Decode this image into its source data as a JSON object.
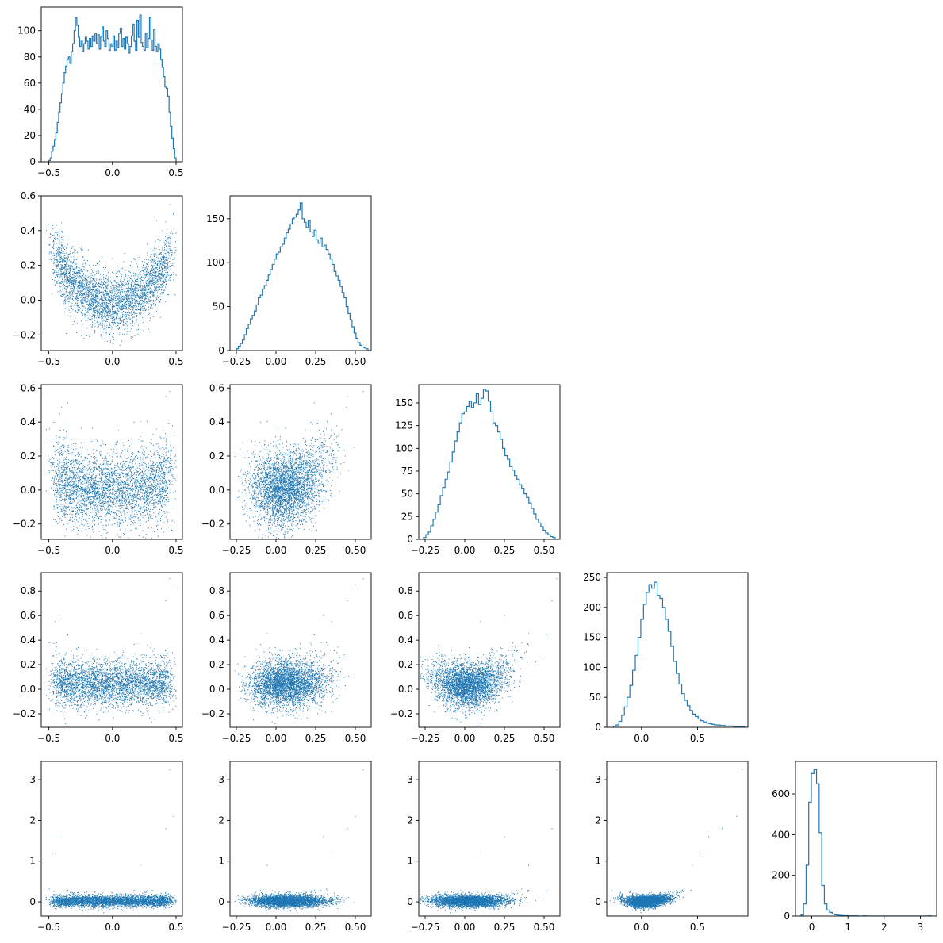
{
  "chart_data": {
    "type": "corner",
    "series_color": "#1f77b4",
    "dims": [
      {
        "index": 0,
        "range": [
          -0.56,
          0.55
        ],
        "xticks": [
          -0.5,
          0.0,
          0.5
        ],
        "xtick_labels": [
          "−0.5",
          "0.0",
          "0.5"
        ],
        "yticks_as_row": [
          -0.2,
          0.0,
          0.2,
          0.4,
          0.6
        ],
        "ytick_labels_as_row": [
          "−0.2",
          "0.0",
          "0.2",
          "0.4",
          "0.6"
        ],
        "hist": {
          "ylim": [
            0,
            118
          ],
          "yticks": [
            0,
            20,
            40,
            60,
            80,
            100
          ],
          "ytick_labels": [
            "0",
            "20",
            "40",
            "60",
            "80",
            "100"
          ],
          "bin_edges": [
            -0.5,
            0.5
          ],
          "counts": [
            1,
            3,
            8,
            12,
            17,
            22,
            30,
            38,
            45,
            52,
            60,
            68,
            73,
            78,
            80,
            75,
            84,
            90,
            100,
            110,
            104,
            95,
            88,
            92,
            84,
            90,
            95,
            92,
            86,
            94,
            88,
            96,
            92,
            98,
            90,
            97,
            86,
            95,
            103,
            92,
            88,
            100,
            94,
            85,
            90,
            88,
            96,
            85,
            92,
            87,
            98,
            102,
            88,
            94,
            86,
            95,
            90,
            83,
            88,
            96,
            105,
            92,
            85,
            108,
            95,
            112,
            91,
            88,
            85,
            98,
            87,
            94,
            110,
            93,
            85,
            101,
            88,
            84,
            90,
            86,
            78,
            72,
            65,
            57,
            56,
            50,
            38,
            27,
            18,
            10,
            3
          ]
        }
      },
      {
        "index": 1,
        "range": [
          -0.29,
          0.6
        ],
        "xticks": [
          -0.25,
          0.0,
          0.25,
          0.5
        ],
        "xtick_labels": [
          "−0.25",
          "0.00",
          "0.25",
          "0.50"
        ],
        "yticks_as_row": [
          -0.2,
          0.0,
          0.2,
          0.4,
          0.6
        ],
        "ytick_labels_as_row": [
          "−0.2",
          "0.0",
          "0.2",
          "0.4",
          "0.6"
        ],
        "hist": {
          "ylim": [
            0,
            176
          ],
          "yticks": [
            0,
            50,
            100,
            150
          ],
          "ytick_labels": [
            "0",
            "50",
            "100",
            "150"
          ],
          "bin_edges": [
            -0.25,
            0.58
          ],
          "counts": [
            2,
            5,
            8,
            12,
            18,
            25,
            30,
            36,
            40,
            45,
            52,
            60,
            63,
            70,
            74,
            80,
            86,
            92,
            98,
            104,
            110,
            112,
            118,
            121,
            128,
            134,
            138,
            144,
            150,
            152,
            155,
            160,
            168,
            150,
            146,
            140,
            148,
            135,
            130,
            137,
            126,
            122,
            128,
            118,
            120,
            115,
            110,
            104,
            98,
            90,
            85,
            80,
            73,
            66,
            60,
            50,
            42,
            35,
            27,
            20,
            14,
            9,
            6,
            4,
            3,
            2
          ]
        }
      },
      {
        "index": 2,
        "range": [
          -0.29,
          0.6
        ],
        "xticks": [
          -0.25,
          0.0,
          0.25,
          0.5
        ],
        "xtick_labels": [
          "−0.25",
          "0.00",
          "0.25",
          "0.50"
        ],
        "yticks_as_row": [
          -0.2,
          0.0,
          0.2,
          0.4,
          0.6
        ],
        "ytick_labels_as_row": [
          "−0.2",
          "0.0",
          "0.2",
          "0.4",
          "0.6"
        ],
        "hist": {
          "ylim": [
            0,
            170
          ],
          "yticks": [
            0,
            25,
            50,
            75,
            100,
            125,
            150
          ],
          "ytick_labels": [
            "0",
            "25",
            "50",
            "75",
            "100",
            "125",
            "150"
          ],
          "bin_edges": [
            -0.26,
            0.57
          ],
          "counts": [
            2,
            5,
            8,
            15,
            22,
            30,
            38,
            48,
            57,
            66,
            74,
            85,
            96,
            108,
            118,
            128,
            138,
            140,
            146,
            152,
            145,
            150,
            160,
            148,
            155,
            165,
            163,
            152,
            140,
            128,
            125,
            118,
            110,
            100,
            92,
            88,
            80,
            76,
            70,
            66,
            60,
            56,
            50,
            46,
            40,
            34,
            28,
            22,
            18,
            14,
            10,
            7,
            5,
            3,
            2
          ]
        }
      },
      {
        "index": 3,
        "range": [
          -0.31,
          0.95
        ],
        "xticks": [
          0.0,
          0.5
        ],
        "xtick_labels": [
          "0.0",
          "0.5"
        ],
        "yticks_as_row": [
          -0.2,
          0.0,
          0.2,
          0.4,
          0.6,
          0.8
        ],
        "ytick_labels_as_row": [
          "−0.2",
          "0.0",
          "0.2",
          "0.4",
          "0.6",
          "0.8"
        ],
        "hist": {
          "ylim": [
            0,
            258
          ],
          "yticks": [
            0,
            50,
            100,
            150,
            200,
            250
          ],
          "ytick_labels": [
            "0",
            "50",
            "100",
            "150",
            "200",
            "250"
          ],
          "bin_edges": [
            -0.25,
            0.92
          ],
          "counts": [
            2,
            4,
            10,
            20,
            34,
            50,
            70,
            95,
            120,
            150,
            180,
            205,
            225,
            238,
            232,
            242,
            220,
            215,
            200,
            180,
            160,
            135,
            110,
            90,
            72,
            56,
            45,
            36,
            28,
            22,
            18,
            14,
            11,
            9,
            7,
            6,
            5,
            4,
            4,
            3,
            3,
            2,
            2,
            2,
            1,
            1,
            1,
            1
          ]
        }
      },
      {
        "index": 4,
        "range": [
          -0.45,
          3.45
        ],
        "xticks": [
          0,
          1,
          2,
          3
        ],
        "xtick_labels": [
          "0",
          "1",
          "2",
          "3"
        ],
        "yticks_as_row": [
          0,
          1,
          2,
          3
        ],
        "ytick_labels_as_row": [
          "0",
          "1",
          "2",
          "3"
        ],
        "hist": {
          "ylim": [
            0,
            760
          ],
          "yticks": [
            0,
            200,
            400,
            600
          ],
          "ytick_labels": [
            "0",
            "200",
            "400",
            "600"
          ],
          "bin_edges": [
            -0.3,
            3.3
          ],
          "counts": [
            5,
            60,
            250,
            560,
            700,
            720,
            650,
            410,
            150,
            60,
            30,
            18,
            10,
            6,
            4,
            3,
            2,
            2,
            1,
            1,
            1,
            1,
            0,
            0,
            1,
            0,
            0,
            0,
            0,
            0,
            0,
            0,
            0,
            0,
            0,
            0,
            0,
            0,
            0,
            0,
            0,
            0,
            0,
            0,
            0,
            0,
            0,
            0,
            0,
            1
          ]
        }
      }
    ],
    "scatter_model": {
      "n_points": 3600,
      "dim0_range": [
        -0.5,
        0.5
      ],
      "noise": [
        0.085,
        0.11,
        0.1,
        0.07
      ]
    }
  }
}
